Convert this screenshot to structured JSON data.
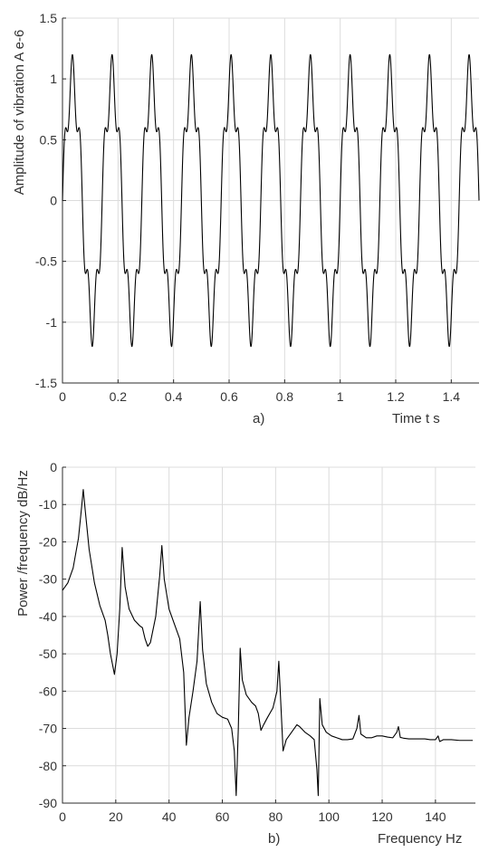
{
  "chart_data": [
    {
      "type": "line",
      "caption": "a)",
      "xlabel": "Time t s",
      "ylabel": "Amplitude of vibration A e-6",
      "xlim": [
        0,
        1.5
      ],
      "ylim": [
        -1.5,
        1.5
      ],
      "xticks": [
        0,
        0.2,
        0.4,
        0.6,
        0.8,
        1,
        1.2,
        1.4
      ],
      "xtick_labels": [
        "0",
        "0.2",
        "0.4",
        "0.6",
        "0.8",
        "1",
        "1.2",
        "1.4"
      ],
      "yticks": [
        1.5,
        1,
        0.5,
        0,
        -0.5,
        -1,
        -1.5
      ],
      "ytick_labels": [
        "1.5",
        "1",
        "0.5",
        "0",
        "-0.5",
        "-1",
        "-1.5"
      ],
      "grid": true,
      "series": [
        {
          "color": "#000000",
          "signal": {
            "components": [
              {
                "amplitude": 1.0,
                "frequency_hz": 7.0
              },
              {
                "amplitude": 0.2,
                "frequency_hz": 35.0
              }
            ]
          },
          "x_range": [
            0,
            1.5
          ]
        }
      ]
    },
    {
      "type": "line",
      "caption": "b)",
      "xlabel": "Frequency Hz",
      "ylabel": "Power /frequency dB/Hz",
      "xlim": [
        0,
        155
      ],
      "ylim": [
        -90,
        0
      ],
      "xticks": [
        0,
        20,
        40,
        60,
        80,
        100,
        120,
        140
      ],
      "xtick_labels": [
        "0",
        "20",
        "40",
        "60",
        "80",
        "100",
        "120",
        "140"
      ],
      "yticks": [
        0,
        -10,
        -20,
        -30,
        -40,
        -50,
        -60,
        -70,
        -80,
        -90
      ],
      "ytick_labels": [
        "0",
        "-10",
        "-20",
        "-30",
        "-40",
        "-50",
        "-60",
        "-70",
        "-80",
        "-90"
      ],
      "grid": true,
      "series": [
        {
          "color": "#000000",
          "points": [
            [
              0,
              -33
            ],
            [
              2,
              -31
            ],
            [
              4,
              -27
            ],
            [
              6,
              -19
            ],
            [
              7,
              -12
            ],
            [
              7.8,
              -6
            ],
            [
              8.6,
              -12
            ],
            [
              10,
              -22
            ],
            [
              12,
              -31
            ],
            [
              14,
              -37
            ],
            [
              16,
              -41
            ],
            [
              17,
              -45
            ],
            [
              18,
              -50
            ],
            [
              19.5,
              -55.5
            ],
            [
              20.5,
              -50
            ],
            [
              21.5,
              -38
            ],
            [
              22.4,
              -21.5
            ],
            [
              23.5,
              -32
            ],
            [
              25,
              -38
            ],
            [
              27,
              -41
            ],
            [
              29,
              -42.5
            ],
            [
              30,
              -43
            ],
            [
              31,
              -46
            ],
            [
              32,
              -48
            ],
            [
              33,
              -47
            ],
            [
              35,
              -40
            ],
            [
              36.5,
              -29
            ],
            [
              37.3,
              -21
            ],
            [
              38.2,
              -30
            ],
            [
              40,
              -38
            ],
            [
              42,
              -42
            ],
            [
              44,
              -46
            ],
            [
              45.5,
              -55
            ],
            [
              46.5,
              -74.5
            ],
            [
              47.5,
              -67
            ],
            [
              49,
              -60
            ],
            [
              50.5,
              -52
            ],
            [
              51.7,
              -36
            ],
            [
              52.6,
              -49
            ],
            [
              54,
              -58
            ],
            [
              56,
              -63
            ],
            [
              58,
              -66
            ],
            [
              60,
              -67
            ],
            [
              62,
              -67.5
            ],
            [
              63.5,
              -70
            ],
            [
              64.5,
              -76
            ],
            [
              65.2,
              -88
            ],
            [
              66,
              -70
            ],
            [
              66.7,
              -48.5
            ],
            [
              67.5,
              -57
            ],
            [
              69,
              -61
            ],
            [
              71,
              -63
            ],
            [
              72.5,
              -64
            ],
            [
              73.5,
              -66
            ],
            [
              74.5,
              -70.5
            ],
            [
              75.5,
              -69
            ],
            [
              77,
              -67
            ],
            [
              79,
              -64.5
            ],
            [
              80.5,
              -60
            ],
            [
              81.2,
              -52
            ],
            [
              82,
              -64
            ],
            [
              82.8,
              -76
            ],
            [
              84,
              -73
            ],
            [
              86,
              -71
            ],
            [
              88,
              -69
            ],
            [
              89,
              -69.5
            ],
            [
              91,
              -71
            ],
            [
              93,
              -72
            ],
            [
              94.5,
              -73
            ],
            [
              95.5,
              -81
            ],
            [
              96,
              -88
            ],
            [
              96.6,
              -62
            ],
            [
              97.5,
              -69
            ],
            [
              99,
              -71
            ],
            [
              101,
              -72
            ],
            [
              103,
              -72.5
            ],
            [
              105,
              -73
            ],
            [
              107,
              -73
            ],
            [
              109,
              -72.8
            ],
            [
              110.5,
              -70
            ],
            [
              111.3,
              -66.5
            ],
            [
              112,
              -71.5
            ],
            [
              114,
              -72.5
            ],
            [
              116,
              -72.5
            ],
            [
              118,
              -72
            ],
            [
              120,
              -72
            ],
            [
              122,
              -72.3
            ],
            [
              124,
              -72.5
            ],
            [
              125.5,
              -71
            ],
            [
              126.1,
              -69.5
            ],
            [
              126.8,
              -72.4
            ],
            [
              128,
              -72.6
            ],
            [
              130,
              -72.8
            ],
            [
              132,
              -72.8
            ],
            [
              134,
              -72.8
            ],
            [
              136,
              -72.8
            ],
            [
              138,
              -73
            ],
            [
              140,
              -73
            ],
            [
              141,
              -72
            ],
            [
              141.6,
              -73.5
            ],
            [
              143,
              -73
            ],
            [
              146,
              -73
            ],
            [
              149,
              -73.2
            ],
            [
              152,
              -73.2
            ],
            [
              154,
              -73.2
            ]
          ]
        }
      ]
    }
  ]
}
